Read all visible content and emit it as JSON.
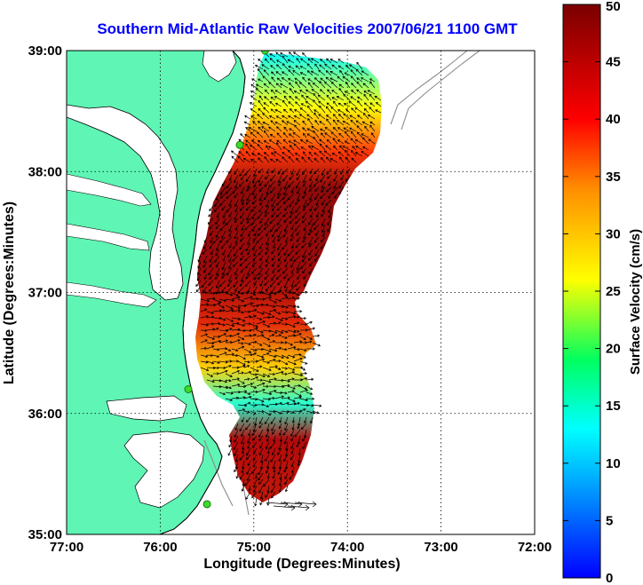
{
  "chart_data": {
    "type": "heatmap",
    "title": "Southern Mid-Atlantic Raw Velocities 2007/06/21 1100 GMT",
    "xlabel": "Longitude (Degrees:Minutes)",
    "ylabel": "Latitude (Degrees:Minutes)",
    "xlim": [
      -77,
      -72
    ],
    "ylim": [
      35,
      39
    ],
    "grid": true,
    "x_ticks": [
      {
        "value": -77,
        "label": "77:00"
      },
      {
        "value": -76,
        "label": "76:00"
      },
      {
        "value": -75,
        "label": "75:00"
      },
      {
        "value": -74,
        "label": "74:00"
      },
      {
        "value": -73,
        "label": "73:00"
      },
      {
        "value": -72,
        "label": "72:00"
      }
    ],
    "y_ticks": [
      {
        "value": 39,
        "label": "39:00"
      },
      {
        "value": 38,
        "label": "38:00"
      },
      {
        "value": 37,
        "label": "37:00"
      },
      {
        "value": 36,
        "label": "36:00"
      },
      {
        "value": 35,
        "label": "35:00"
      }
    ],
    "colorbar": {
      "label": "Surface Velocity (cm/s)",
      "range": [
        0,
        50
      ],
      "ticks": [
        0,
        5,
        10,
        15,
        20,
        25,
        30,
        35,
        40,
        45,
        50
      ],
      "stops": [
        "#0000ff",
        "#00b4ff",
        "#00ffff",
        "#00ff60",
        "#ffff00",
        "#ff8c00",
        "#ff0000",
        "#7a0000"
      ]
    },
    "colors": {
      "land": "#5ff5b4",
      "water": "#ffffff",
      "bathymetry": "#8c8c8c",
      "arrows": "#000000",
      "stations": "#3cdc28",
      "title": "#0000ff"
    },
    "stations": [
      {
        "lon": -74.88,
        "lat": 39.0
      },
      {
        "lon": -75.15,
        "lat": 38.22
      },
      {
        "lon": -75.7,
        "lat": 36.2
      },
      {
        "lon": -75.5,
        "lat": 35.25
      }
    ],
    "velocity_regions": [
      {
        "lon_range": [
          -74.85,
          -74.05
        ],
        "lat_range": [
          38.35,
          38.95
        ],
        "speed": 16
      },
      {
        "lon_range": [
          -75.15,
          -74.55
        ],
        "lat_range": [
          37.5,
          38.25
        ],
        "speed": 48
      },
      {
        "lon_range": [
          -75.3,
          -74.9
        ],
        "lat_range": [
          36.6,
          37.0
        ],
        "speed": 45
      },
      {
        "lon_range": [
          -75.0,
          -74.5
        ],
        "lat_range": [
          36.05,
          36.55
        ],
        "speed": 20
      },
      {
        "lon_range": [
          -75.0,
          -74.6
        ],
        "lat_range": [
          35.3,
          35.95
        ],
        "speed": 47
      }
    ]
  }
}
